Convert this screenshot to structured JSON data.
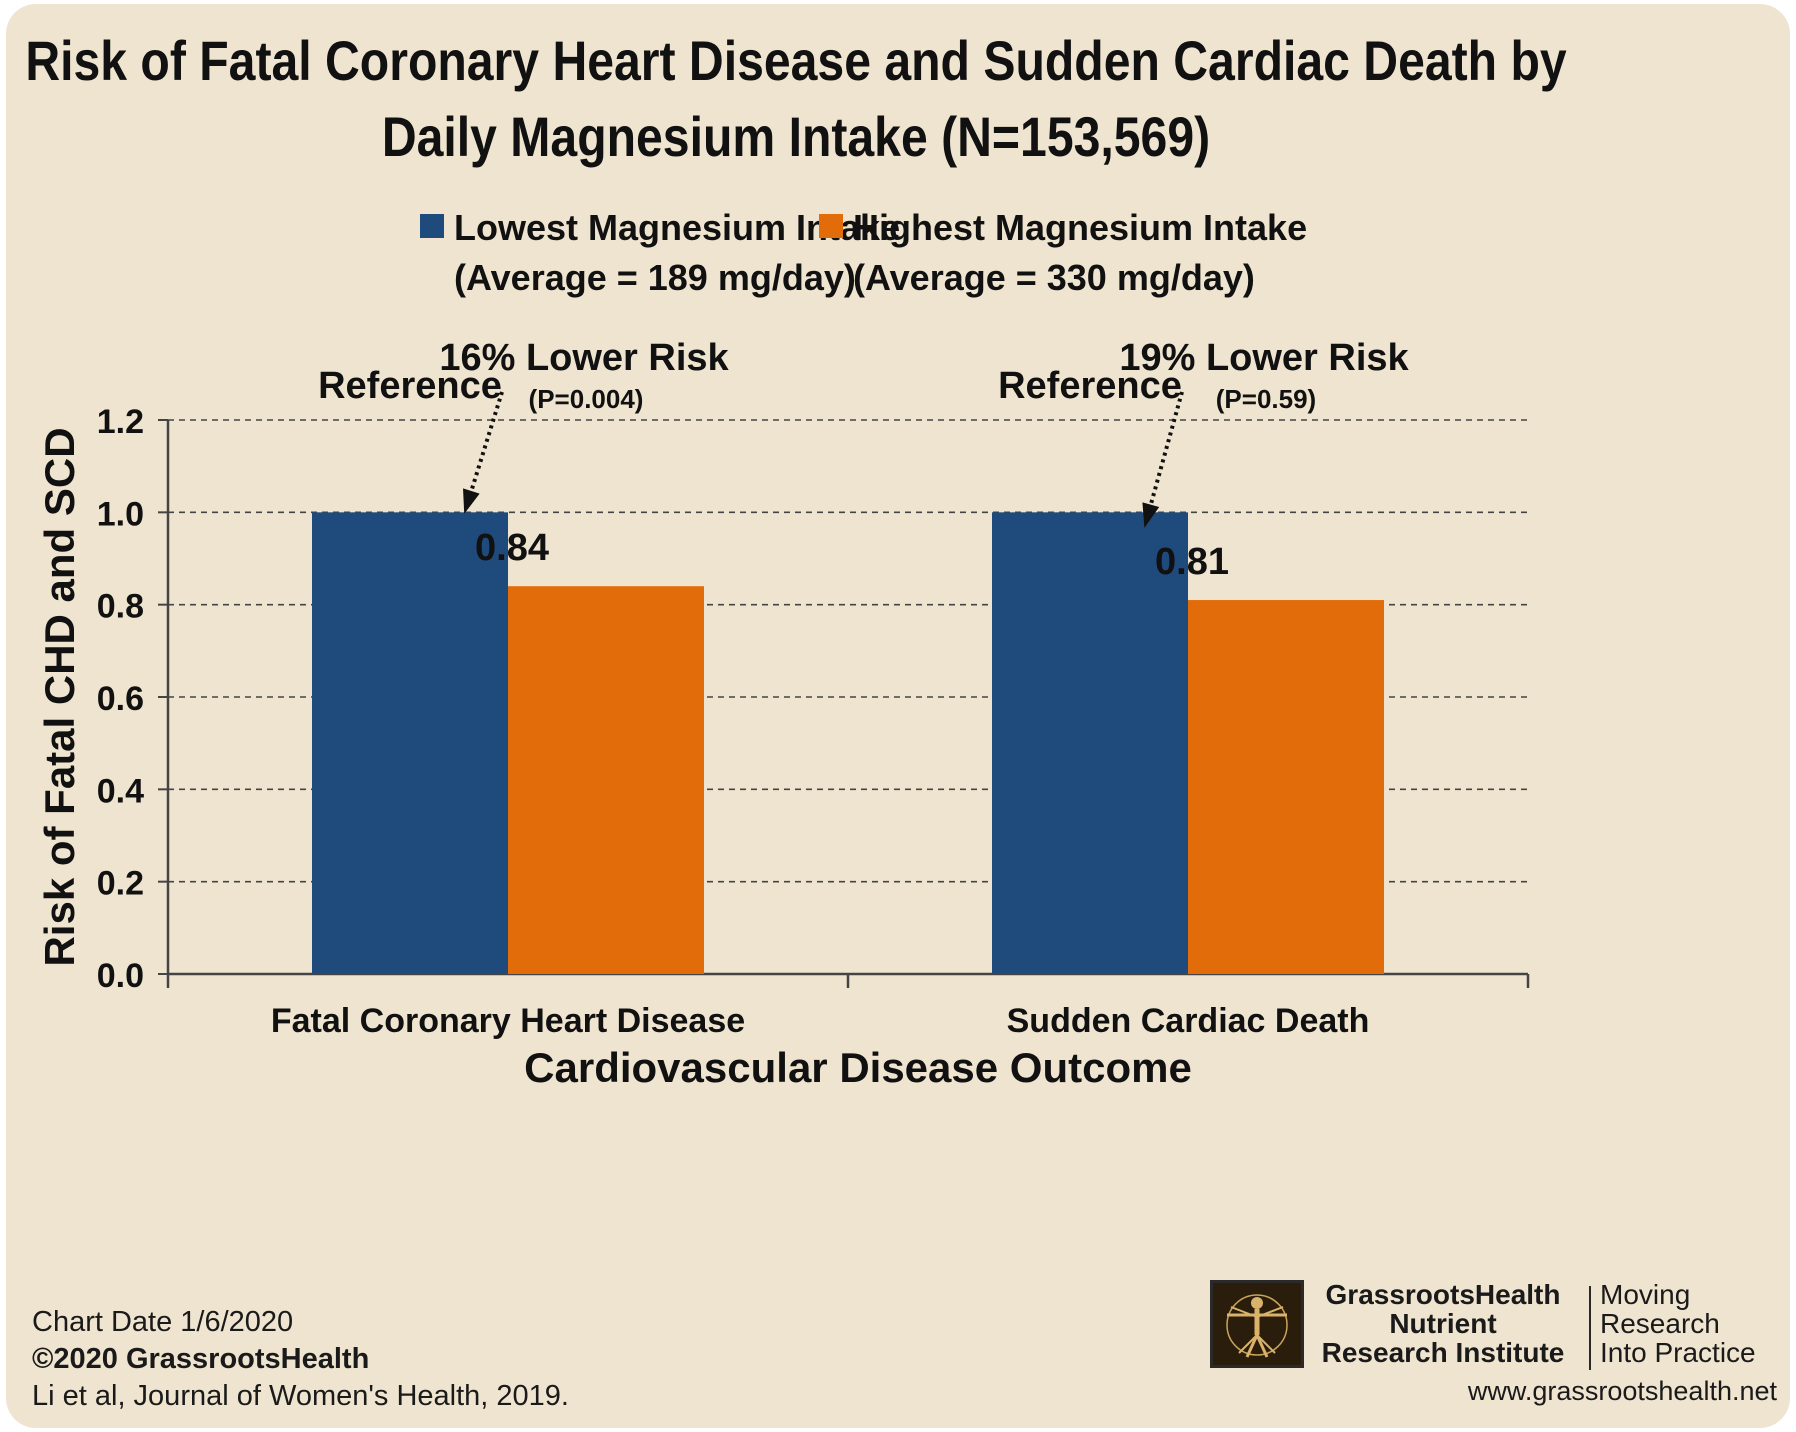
{
  "chart_data": {
    "type": "bar",
    "title_lines": [
      "Risk of Fatal Coronary Heart Disease and Sudden Cardiac Death by",
      "Daily Magnesium Intake (N=153,569)"
    ],
    "categories": [
      "Fatal Coronary Heart Disease",
      "Sudden Cardiac Death"
    ],
    "series": [
      {
        "name": "Lowest Magnesium Intake",
        "name_line2": "(Average = 189 mg/day)",
        "values": [
          1.0,
          1.0
        ],
        "color": "#1f4a7c"
      },
      {
        "name": "Highest Magnesium Intake",
        "name_line2": "(Average = 330 mg/day)",
        "values": [
          0.84,
          0.81
        ],
        "color": "#e36c0a"
      }
    ],
    "xlabel": "Cardiovascular Disease Outcome",
    "ylabel": "Risk of Fatal CHD and SCD",
    "ylim": [
      0,
      1.2
    ],
    "yticks": [
      "0.0",
      "0.2",
      "0.4",
      "0.6",
      "0.8",
      "1.0",
      "1.2"
    ],
    "grid": true,
    "legend_position": "top",
    "annotations": [
      {
        "reference": "Reference",
        "risk": "16% Lower Risk",
        "p": "(P=0.004)",
        "value_label": "0.84"
      },
      {
        "reference": "Reference",
        "risk": "19% Lower Risk",
        "p": "(P=0.59)",
        "value_label": "0.81"
      }
    ]
  },
  "footer": {
    "chart_date": "Chart Date 1/6/2020",
    "copyright": "©2020 GrassrootsHealth",
    "citation": "Li et al, Journal of Women's Health, 2019.",
    "org_lines": [
      "GrassrootsHealth",
      "Nutrient",
      "Research Institute"
    ],
    "tagline_lines": [
      "Moving",
      "Research",
      "Into Practice"
    ],
    "url": "www.grassrootshealth.net"
  },
  "colors": {
    "background": "#efe4cf",
    "lowest": "#1f4a7c",
    "highest": "#e36c0a"
  }
}
